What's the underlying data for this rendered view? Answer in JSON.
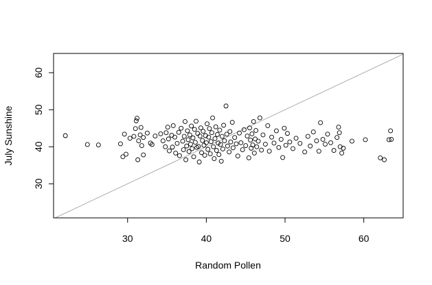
{
  "chart_data": {
    "type": "scatter",
    "title": "",
    "xlabel": "Random Pollen",
    "ylabel": "July Sunshine",
    "xlim": [
      20.6,
      65.0
    ],
    "ylim": [
      20.8,
      65.2
    ],
    "xticks": [
      30,
      40,
      50,
      60
    ],
    "yticks": [
      30,
      40,
      50,
      60
    ],
    "grid": false,
    "legend": "none",
    "point_color": "#000000",
    "reference_line": {
      "intercept": 0,
      "slope": 1,
      "color": "#999999"
    },
    "points": [
      [
        22.1,
        43.0
      ],
      [
        24.9,
        40.6
      ],
      [
        26.3,
        40.5
      ],
      [
        29.1,
        40.8
      ],
      [
        29.4,
        37.3
      ],
      [
        29.6,
        43.4
      ],
      [
        29.8,
        38.0
      ],
      [
        30.3,
        42.3
      ],
      [
        30.8,
        42.8
      ],
      [
        31.0,
        44.9
      ],
      [
        31.1,
        47.0
      ],
      [
        31.2,
        47.7
      ],
      [
        31.3,
        36.5
      ],
      [
        31.4,
        41.6
      ],
      [
        31.6,
        43.2
      ],
      [
        31.7,
        45.2
      ],
      [
        31.8,
        40.3
      ],
      [
        32.0,
        42.5
      ],
      [
        32.0,
        37.8
      ],
      [
        32.5,
        43.7
      ],
      [
        32.9,
        41.0
      ],
      [
        33.1,
        40.6
      ],
      [
        33.5,
        42.9
      ],
      [
        34.2,
        43.5
      ],
      [
        34.5,
        41.6
      ],
      [
        34.8,
        40.0
      ],
      [
        34.9,
        43.8
      ],
      [
        35.1,
        45.3
      ],
      [
        35.2,
        42.1
      ],
      [
        35.3,
        38.9
      ],
      [
        35.6,
        43.1
      ],
      [
        35.7,
        39.9
      ],
      [
        35.8,
        45.7
      ],
      [
        36.0,
        42.6
      ],
      [
        36.1,
        38.3
      ],
      [
        36.3,
        40.9
      ],
      [
        36.5,
        43.9
      ],
      [
        36.6,
        37.6
      ],
      [
        36.8,
        45.0
      ],
      [
        37.0,
        41.5
      ],
      [
        37.1,
        39.2
      ],
      [
        37.2,
        42.8
      ],
      [
        37.3,
        46.8
      ],
      [
        37.4,
        36.5
      ],
      [
        37.5,
        40.2
      ],
      [
        37.6,
        44.3
      ],
      [
        37.7,
        41.9
      ],
      [
        37.8,
        38.7
      ],
      [
        37.9,
        43.2
      ],
      [
        38.0,
        40.7
      ],
      [
        38.1,
        45.6
      ],
      [
        38.2,
        39.5
      ],
      [
        38.3,
        42.4
      ],
      [
        38.4,
        37.3
      ],
      [
        38.5,
        44.7
      ],
      [
        38.6,
        41.2
      ],
      [
        38.7,
        46.9
      ],
      [
        38.8,
        39.8
      ],
      [
        38.9,
        43.6
      ],
      [
        39.0,
        40.1
      ],
      [
        39.1,
        35.9
      ],
      [
        39.2,
        42.9
      ],
      [
        39.3,
        45.1
      ],
      [
        39.4,
        38.4
      ],
      [
        39.5,
        41.7
      ],
      [
        39.6,
        44.2
      ],
      [
        39.7,
        40.4
      ],
      [
        39.8,
        37.7
      ],
      [
        39.9,
        43.0
      ],
      [
        40.0,
        41.1
      ],
      [
        40.1,
        46.2
      ],
      [
        40.2,
        39.3
      ],
      [
        40.3,
        42.6
      ],
      [
        40.4,
        44.9
      ],
      [
        40.5,
        38.1
      ],
      [
        40.6,
        41.4
      ],
      [
        40.7,
        43.8
      ],
      [
        40.8,
        47.8
      ],
      [
        40.9,
        40.0
      ],
      [
        41.0,
        36.8
      ],
      [
        41.1,
        42.2
      ],
      [
        41.2,
        45.4
      ],
      [
        41.3,
        39.0
      ],
      [
        41.4,
        43.3
      ],
      [
        41.5,
        41.0
      ],
      [
        41.6,
        37.9
      ],
      [
        41.7,
        44.5
      ],
      [
        41.8,
        40.6
      ],
      [
        41.9,
        36.1
      ],
      [
        42.0,
        42.8
      ],
      [
        42.1,
        39.4
      ],
      [
        42.2,
        45.8
      ],
      [
        42.3,
        41.6
      ],
      [
        42.5,
        51.0
      ],
      [
        42.6,
        43.4
      ],
      [
        42.7,
        40.2
      ],
      [
        42.9,
        38.6
      ],
      [
        43.0,
        44.1
      ],
      [
        43.1,
        41.3
      ],
      [
        43.3,
        46.6
      ],
      [
        43.4,
        39.7
      ],
      [
        43.6,
        42.5
      ],
      [
        43.8,
        40.8
      ],
      [
        44.0,
        37.5
      ],
      [
        44.2,
        43.7
      ],
      [
        44.4,
        41.1
      ],
      [
        44.6,
        39.2
      ],
      [
        44.8,
        44.6
      ],
      [
        45.0,
        40.3
      ],
      [
        45.2,
        42.9
      ],
      [
        45.4,
        37.0
      ],
      [
        45.5,
        45.1
      ],
      [
        45.6,
        41.8
      ],
      [
        45.7,
        39.6
      ],
      [
        45.8,
        43.5
      ],
      [
        45.9,
        40.5
      ],
      [
        46.0,
        46.8
      ],
      [
        46.1,
        38.3
      ],
      [
        46.2,
        42.1
      ],
      [
        46.3,
        44.4
      ],
      [
        46.4,
        40.0
      ],
      [
        46.6,
        41.5
      ],
      [
        46.8,
        47.8
      ],
      [
        47.0,
        39.1
      ],
      [
        47.2,
        43.2
      ],
      [
        47.5,
        40.7
      ],
      [
        47.8,
        45.7
      ],
      [
        48.0,
        38.8
      ],
      [
        48.3,
        42.6
      ],
      [
        48.6,
        41.0
      ],
      [
        48.9,
        44.3
      ],
      [
        49.2,
        39.8
      ],
      [
        49.5,
        42.0
      ],
      [
        49.7,
        37.1
      ],
      [
        49.9,
        45.0
      ],
      [
        50.1,
        40.4
      ],
      [
        50.3,
        43.6
      ],
      [
        50.6,
        41.3
      ],
      [
        51.0,
        39.5
      ],
      [
        51.4,
        42.3
      ],
      [
        51.9,
        40.9
      ],
      [
        52.5,
        38.6
      ],
      [
        52.9,
        42.8
      ],
      [
        53.2,
        40.2
      ],
      [
        53.6,
        44.0
      ],
      [
        54.0,
        41.6
      ],
      [
        54.3,
        38.8
      ],
      [
        54.5,
        46.5
      ],
      [
        54.8,
        42.0
      ],
      [
        55.1,
        40.7
      ],
      [
        55.4,
        43.4
      ],
      [
        55.8,
        41.1
      ],
      [
        56.2,
        39.0
      ],
      [
        56.6,
        42.5
      ],
      [
        56.8,
        45.3
      ],
      [
        56.9,
        43.8
      ],
      [
        57.0,
        40.0
      ],
      [
        57.2,
        38.3
      ],
      [
        57.4,
        39.6
      ],
      [
        58.5,
        41.5
      ],
      [
        60.2,
        41.9
      ],
      [
        62.1,
        37.0
      ],
      [
        62.6,
        36.5
      ],
      [
        63.2,
        41.9
      ],
      [
        63.5,
        42.0
      ],
      [
        63.4,
        44.3
      ]
    ]
  }
}
